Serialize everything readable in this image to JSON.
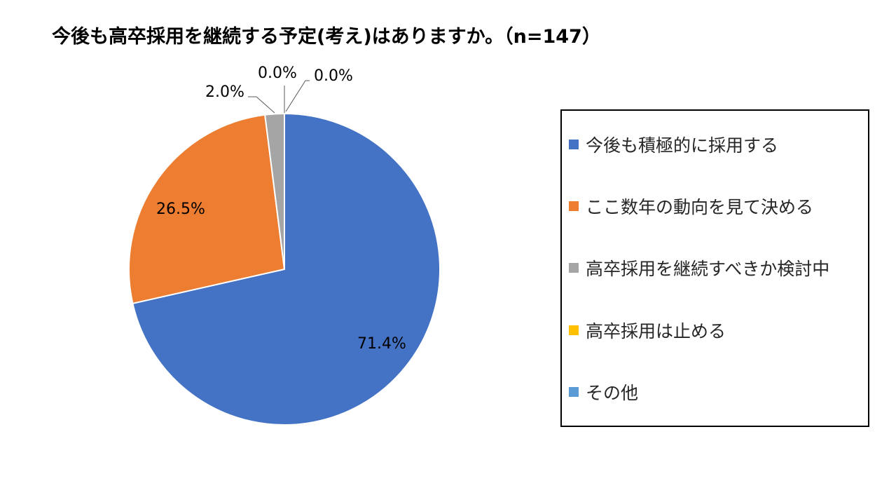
{
  "chart_data": {
    "type": "pie",
    "title": "今後も高卒採用を継続する予定(考え)はありますか。（n=147）",
    "slices": [
      {
        "label": "今後も積極的に採用する",
        "value": 71.4,
        "data_label": "71.4%",
        "color": "#4472C4"
      },
      {
        "label": "ここ数年の動向を見て決める",
        "value": 26.5,
        "data_label": "26.5%",
        "color": "#ED7D31"
      },
      {
        "label": "高卒採用を継続すべきか検討中",
        "value": 2.0,
        "data_label": "2.0%",
        "color": "#A5A5A5"
      },
      {
        "label": "高卒採用は止める",
        "value": 0.0,
        "data_label": "0.0%",
        "color": "#FFC000"
      },
      {
        "label": "その他",
        "value": 0.0,
        "data_label": "0.0%",
        "color": "#5B9BD5"
      }
    ],
    "start_angle": "12 o'clock",
    "direction": "clockwise",
    "legend_position": "right"
  }
}
